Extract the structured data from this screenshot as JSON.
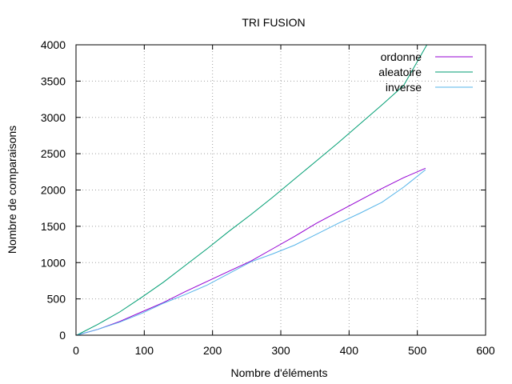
{
  "chart_data": {
    "type": "line",
    "title": "TRI FUSION",
    "xlabel": "Nombre d'éléments",
    "ylabel": "Nombre de comparaisons",
    "xlim": [
      0,
      600
    ],
    "ylim": [
      0,
      4000
    ],
    "xticks": [
      0,
      100,
      200,
      300,
      400,
      500,
      600
    ],
    "yticks": [
      0,
      500,
      1000,
      1500,
      2000,
      2500,
      3000,
      3500,
      4000
    ],
    "grid": true,
    "legend_position": "top-right",
    "series": [
      {
        "name": "ordonne",
        "color": "#9400d3",
        "x": [
          1,
          32,
          64,
          96,
          128,
          160,
          192,
          224,
          256,
          288,
          320,
          352,
          384,
          416,
          448,
          480,
          512
        ],
        "y": [
          0,
          80,
          190,
          320,
          450,
          600,
          740,
          880,
          1020,
          1190,
          1360,
          1540,
          1700,
          1860,
          2020,
          2170,
          2300
        ]
      },
      {
        "name": "aleatoire",
        "color": "#009e73",
        "x": [
          1,
          32,
          64,
          96,
          128,
          160,
          192,
          224,
          256,
          288,
          320,
          352,
          384,
          416,
          448,
          480,
          514
        ],
        "y": [
          0,
          150,
          320,
          520,
          730,
          960,
          1190,
          1430,
          1660,
          1900,
          2150,
          2400,
          2650,
          2910,
          3170,
          3440,
          4000
        ]
      },
      {
        "name": "inverse",
        "color": "#56b4e9",
        "x": [
          1,
          32,
          64,
          96,
          128,
          160,
          192,
          224,
          256,
          288,
          320,
          352,
          384,
          416,
          448,
          480,
          512
        ],
        "y": [
          0,
          80,
          180,
          300,
          440,
          560,
          690,
          850,
          1010,
          1120,
          1240,
          1390,
          1540,
          1680,
          1830,
          2040,
          2280
        ]
      }
    ]
  }
}
